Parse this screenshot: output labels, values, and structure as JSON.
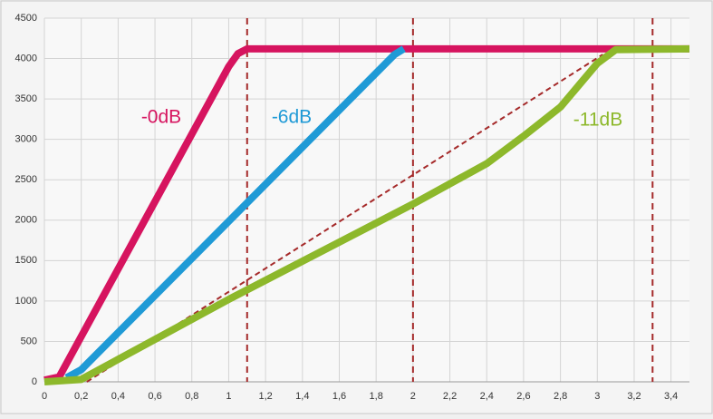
{
  "chart_data": {
    "type": "line",
    "xlim": [
      0,
      3.5
    ],
    "ylim": [
      0,
      4500
    ],
    "xticks": [
      0,
      {
        "value": 0.2,
        "label": "0,2"
      },
      {
        "value": 0.4,
        "label": "0,4"
      },
      {
        "value": 0.6,
        "label": "0,6"
      },
      {
        "value": 0.8,
        "label": "0,8"
      },
      1,
      {
        "value": 1.2,
        "label": "1,2"
      },
      {
        "value": 1.4,
        "label": "1,4"
      },
      {
        "value": 1.6,
        "label": "1,6"
      },
      {
        "value": 1.8,
        "label": "1,8"
      },
      2,
      {
        "value": 2.2,
        "label": "2,2"
      },
      {
        "value": 2.4,
        "label": "2,4"
      },
      {
        "value": 2.6,
        "label": "2,6"
      },
      {
        "value": 2.8,
        "label": "2,8"
      },
      3,
      {
        "value": 3.2,
        "label": "3,2"
      },
      {
        "value": 3.4,
        "label": "3,4"
      }
    ],
    "yticks": [
      0,
      500,
      1000,
      1500,
      2000,
      2500,
      3000,
      3500,
      4000,
      4500
    ],
    "grid": true,
    "series": [
      {
        "name": "-0dB",
        "color": "#d6145f",
        "x": [
          0,
          0.08,
          1.0,
          1.05,
          1.1,
          3.5
        ],
        "values": [
          20,
          60,
          3900,
          4060,
          4120,
          4120
        ]
      },
      {
        "name": "-6dB",
        "color": "#1f9ad6",
        "x": [
          0.12,
          0.2,
          1.9,
          1.95
        ],
        "values": [
          50,
          150,
          4050,
          4120
        ]
      },
      {
        "name": "-11dB",
        "color": "#8db82b",
        "x": [
          0,
          0.2,
          1.0,
          2.0,
          2.4,
          2.6,
          2.8,
          3.0,
          3.1,
          3.5
        ],
        "values": [
          0,
          30,
          1020,
          2200,
          2700,
          3040,
          3400,
          3940,
          4110,
          4120
        ]
      }
    ],
    "reference_line": {
      "color": "#a52a2a",
      "x": [
        0.23,
        3.03
      ],
      "values": [
        0,
        4050
      ]
    },
    "vlines": [
      1.1,
      2,
      3.3
    ]
  }
}
